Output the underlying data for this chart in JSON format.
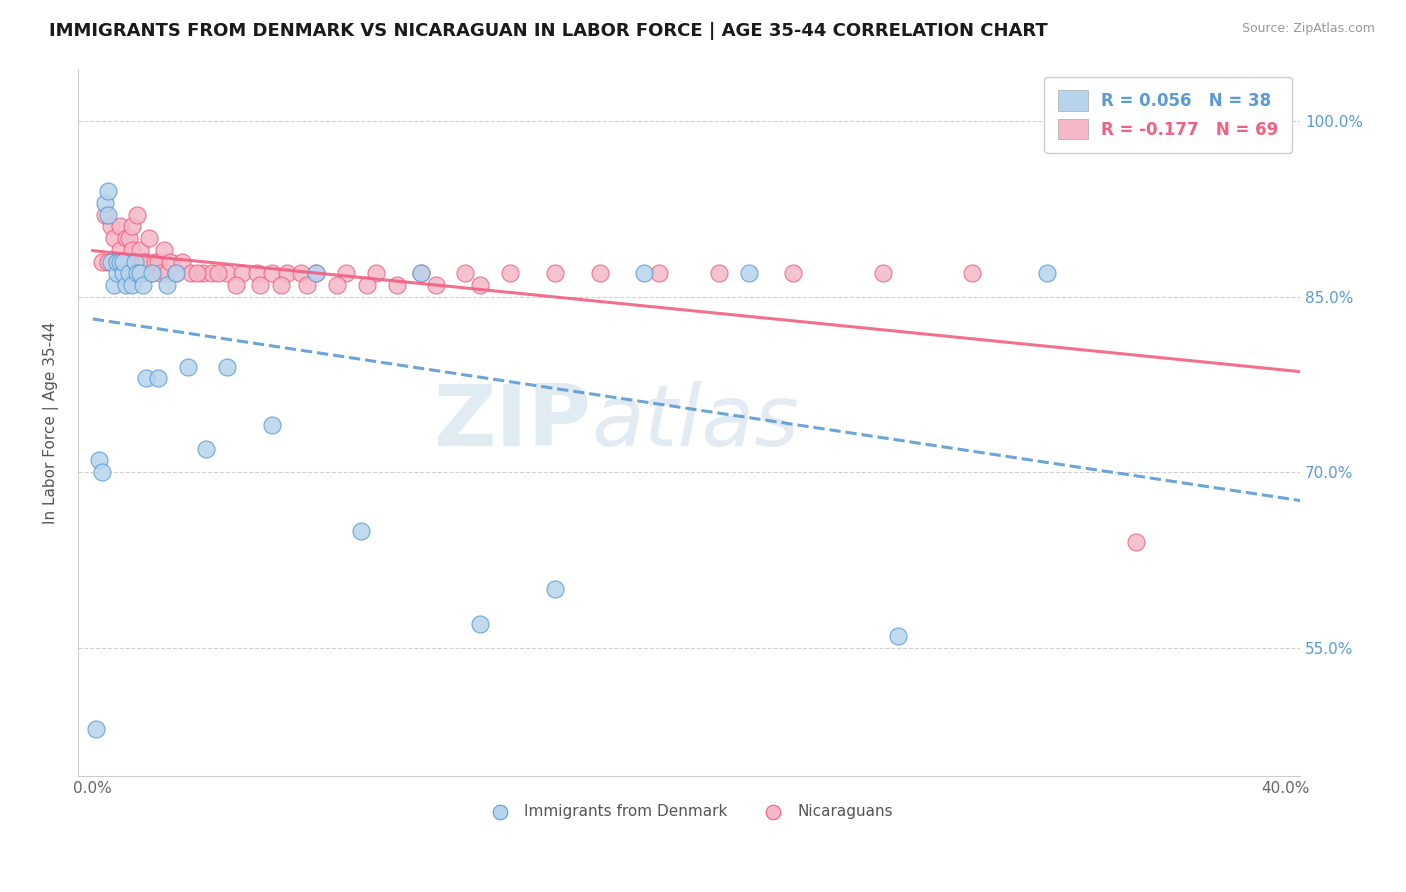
{
  "title": "IMMIGRANTS FROM DENMARK VS NICARAGUAN IN LABOR FORCE | AGE 35-44 CORRELATION CHART",
  "source": "Source: ZipAtlas.com",
  "ylabel": "In Labor Force | Age 35-44",
  "xlim": [
    -0.005,
    0.405
  ],
  "ylim": [
    0.44,
    1.045
  ],
  "xtick_positions": [
    0.0,
    0.1,
    0.2,
    0.3,
    0.4
  ],
  "xticklabels": [
    "0.0%",
    "",
    "",
    "",
    "40.0%"
  ],
  "ytick_positions": [
    0.55,
    0.7,
    0.85,
    1.0
  ],
  "yticklabels": [
    "55.0%",
    "70.0%",
    "85.0%",
    "100.0%"
  ],
  "legend1_label": "R = 0.056   N = 38",
  "legend2_label": "R = -0.177   N = 69",
  "line1_color": "#5b9bd5",
  "line2_color": "#f06080",
  "scatter1_facecolor": "#b8d4ec",
  "scatter1_edgecolor": "#5b9bd5",
  "scatter2_facecolor": "#f4b8c8",
  "scatter2_edgecolor": "#f06080",
  "denmark_x": [
    0.001,
    0.002,
    0.003,
    0.004,
    0.005,
    0.005,
    0.006,
    0.007,
    0.008,
    0.008,
    0.009,
    0.01,
    0.01,
    0.011,
    0.012,
    0.013,
    0.014,
    0.015,
    0.016,
    0.017,
    0.018,
    0.02,
    0.022,
    0.025,
    0.028,
    0.032,
    0.038,
    0.045,
    0.06,
    0.075,
    0.09,
    0.11,
    0.13,
    0.155,
    0.185,
    0.22,
    0.27,
    0.32
  ],
  "denmark_y": [
    0.48,
    0.71,
    0.7,
    0.93,
    0.94,
    0.92,
    0.88,
    0.86,
    0.87,
    0.88,
    0.88,
    0.87,
    0.88,
    0.86,
    0.87,
    0.86,
    0.88,
    0.87,
    0.87,
    0.86,
    0.78,
    0.87,
    0.78,
    0.86,
    0.87,
    0.79,
    0.72,
    0.79,
    0.74,
    0.87,
    0.65,
    0.87,
    0.57,
    0.6,
    0.87,
    0.87,
    0.56,
    0.87
  ],
  "nicaragua_x": [
    0.003,
    0.004,
    0.005,
    0.006,
    0.007,
    0.008,
    0.009,
    0.009,
    0.01,
    0.01,
    0.011,
    0.011,
    0.012,
    0.012,
    0.012,
    0.013,
    0.013,
    0.014,
    0.014,
    0.015,
    0.016,
    0.016,
    0.017,
    0.017,
    0.018,
    0.019,
    0.02,
    0.021,
    0.022,
    0.023,
    0.024,
    0.025,
    0.026,
    0.028,
    0.03,
    0.033,
    0.037,
    0.04,
    0.045,
    0.05,
    0.055,
    0.06,
    0.065,
    0.07,
    0.075,
    0.085,
    0.095,
    0.11,
    0.125,
    0.14,
    0.155,
    0.17,
    0.19,
    0.21,
    0.235,
    0.265,
    0.295,
    0.035,
    0.042,
    0.048,
    0.056,
    0.063,
    0.072,
    0.082,
    0.092,
    0.102,
    0.115,
    0.13,
    0.35
  ],
  "nicaragua_y": [
    0.88,
    0.92,
    0.88,
    0.91,
    0.9,
    0.88,
    0.89,
    0.91,
    0.87,
    0.88,
    0.88,
    0.9,
    0.87,
    0.88,
    0.9,
    0.89,
    0.91,
    0.87,
    0.88,
    0.92,
    0.87,
    0.89,
    0.87,
    0.88,
    0.88,
    0.9,
    0.87,
    0.88,
    0.88,
    0.87,
    0.89,
    0.87,
    0.88,
    0.87,
    0.88,
    0.87,
    0.87,
    0.87,
    0.87,
    0.87,
    0.87,
    0.87,
    0.87,
    0.87,
    0.87,
    0.87,
    0.87,
    0.87,
    0.87,
    0.87,
    0.87,
    0.87,
    0.87,
    0.87,
    0.87,
    0.87,
    0.87,
    0.87,
    0.87,
    0.86,
    0.86,
    0.86,
    0.86,
    0.86,
    0.86,
    0.86,
    0.86,
    0.86,
    0.64
  ]
}
